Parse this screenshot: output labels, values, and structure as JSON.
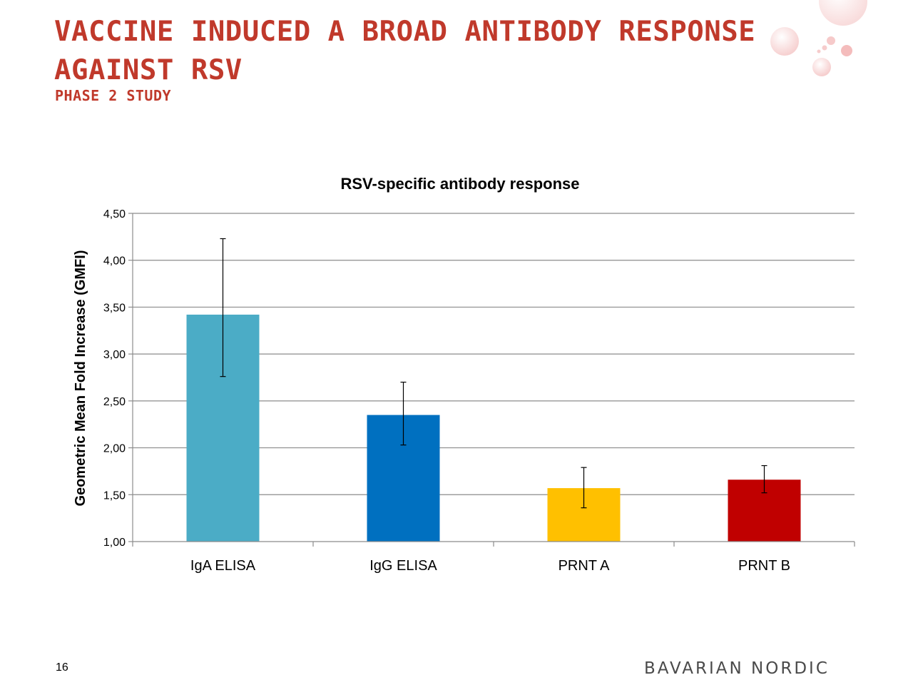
{
  "slide": {
    "title_lines": [
      "VACCINE INDUCED A BROAD ANTIBODY RESPONSE",
      "AGAINST RSV"
    ],
    "subtitle": "PHASE 2 STUDY",
    "page_number": "16",
    "brand_logo_text": "BAVARIAN NORDIC",
    "decoration_icon": "bubbles-icon",
    "colors": {
      "title": "#c0392b"
    }
  },
  "chart_data": {
    "type": "bar",
    "title": "RSV-specific antibody response",
    "xlabel": "",
    "ylabel": "Geometric Mean Fold Increase (GMFI)",
    "categories": [
      "IgA ELISA",
      "IgG ELISA",
      "PRNT A",
      "PRNT B"
    ],
    "values": [
      3.42,
      2.35,
      1.57,
      1.66
    ],
    "error_low": [
      2.76,
      2.03,
      1.36,
      1.52
    ],
    "error_high": [
      4.23,
      2.7,
      1.79,
      1.81
    ],
    "colors": [
      "#4bacc6",
      "#0070c0",
      "#ffc000",
      "#c00000"
    ],
    "ylim": [
      1.0,
      4.5
    ],
    "yticks": [
      "1,00",
      "1,50",
      "2,00",
      "2,50",
      "3,00",
      "3,50",
      "4,00",
      "4,50"
    ],
    "grid": true,
    "legend": "none"
  }
}
